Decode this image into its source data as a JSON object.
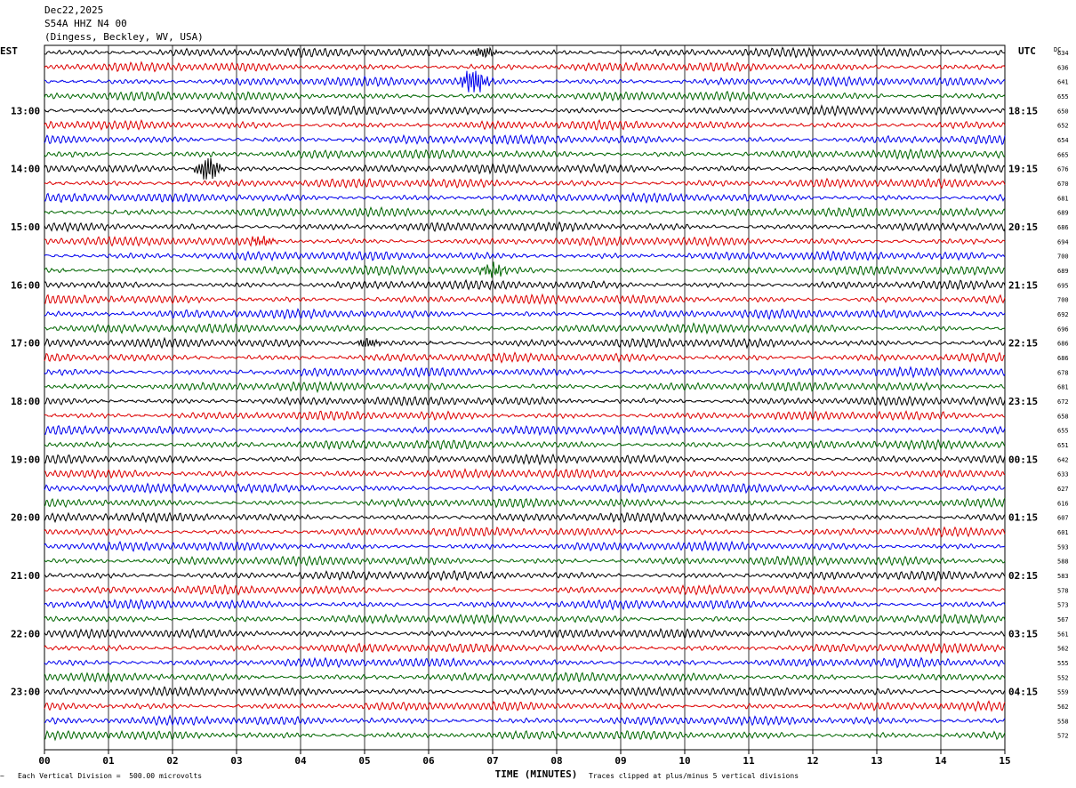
{
  "header": {
    "date": "Dec22,2025",
    "station": "S54A HHZ N4 00",
    "location": "(Dingess, Beckley, WV, USA)"
  },
  "chart_data": {
    "type": "line",
    "title": "",
    "xlabel": "TIME (MINUTES)",
    "left_axis_label": "EST",
    "right_axis_label": "UTC",
    "dc_label": "DC",
    "x_ticks": [
      "00",
      "01",
      "02",
      "03",
      "04",
      "05",
      "06",
      "07",
      "08",
      "09",
      "10",
      "11",
      "12",
      "13",
      "14",
      "15"
    ],
    "xlim": [
      0,
      15
    ],
    "est_labels": [
      "13:00",
      "14:00",
      "15:00",
      "16:00",
      "17:00",
      "18:00",
      "19:00",
      "20:00",
      "21:00",
      "22:00",
      "23:00"
    ],
    "utc_labels": [
      "18:15",
      "19:15",
      "20:15",
      "21:15",
      "22:15",
      "23:15",
      "00:15",
      "01:15",
      "02:15",
      "03:15",
      "04:15"
    ],
    "dc_offsets": [
      634,
      636,
      641,
      655,
      650,
      652,
      654,
      665,
      676,
      670,
      681,
      689,
      686,
      694,
      700,
      689,
      695,
      700,
      692,
      696,
      686,
      686,
      678,
      681,
      672,
      658,
      655,
      651,
      642,
      633,
      627,
      616,
      607,
      601,
      593,
      588,
      583,
      578,
      573,
      567,
      561,
      562,
      555,
      552,
      559,
      562,
      558,
      572
    ],
    "trace_colors": [
      "#000000",
      "#dd0000",
      "#0000ee",
      "#006600"
    ],
    "grid": true,
    "events": [
      {
        "trace": 2,
        "minute": 6.65,
        "amplitude": 14
      },
      {
        "trace": 8,
        "minute": 2.5,
        "amplitude": 13
      },
      {
        "trace": 15,
        "minute": 6.95,
        "amplitude": 7
      },
      {
        "trace": 13,
        "minute": 3.35,
        "amplitude": 5
      },
      {
        "trace": 0,
        "minute": 6.8,
        "amplitude": 6
      },
      {
        "trace": 20,
        "minute": 5.0,
        "amplitude": 5
      }
    ],
    "footer_left": "Each Vertical Division =  500.00 microvolts",
    "footer_right": "Traces clipped at plus/minus 5 vertical divisions"
  }
}
